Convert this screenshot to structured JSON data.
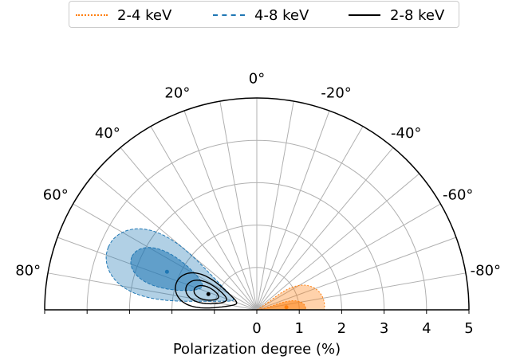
{
  "chart_data": {
    "type": "polar",
    "title": "",
    "xlabel": "Polarization degree (%)",
    "radial_range": [
      0,
      5
    ],
    "radial_ticks": [
      0,
      1,
      2,
      3,
      4,
      5
    ],
    "angle_range_deg": [
      -90,
      90
    ],
    "angle_ticks_deg": [
      0,
      20,
      40,
      60,
      80,
      -20,
      -40,
      -60,
      -80
    ],
    "angle_tick_labels": [
      "0°",
      "20°",
      "40°",
      "60°",
      "80°",
      "-20°",
      "-40°",
      "-60°",
      "-80°"
    ],
    "grid": true,
    "legend_placement": "top",
    "series": [
      {
        "name": "2-4 keV",
        "color": "#ff7f0e",
        "linestyle": "dotted",
        "best_fit": {
          "pd": 0.7,
          "angle_deg": -85
        },
        "contours": [
          {
            "level": "inner",
            "center_pd": 0.6,
            "center_angle_deg": -88,
            "semi_pd": 0.55,
            "semi_angle_deg": 14
          },
          {
            "level": "outer",
            "center_pd": 0.6,
            "center_angle_deg": -85,
            "semi_pd": 1.0,
            "semi_angle_deg": 30
          }
        ]
      },
      {
        "name": "4-8 keV",
        "color": "#1f77b4",
        "linestyle": "dashed",
        "best_fit": {
          "pd": 2.3,
          "angle_deg": 67
        },
        "contours": [
          {
            "level": "inner",
            "center_pd": 2.3,
            "center_angle_deg": 67,
            "semi_pd": 0.9,
            "semi_angle_deg": 10
          },
          {
            "level": "outer",
            "center_pd": 2.2,
            "center_angle_deg": 67,
            "semi_pd": 1.6,
            "semi_angle_deg": 17
          }
        ]
      },
      {
        "name": "2-8 keV",
        "color": "#000000",
        "linestyle": "solid",
        "best_fit": {
          "pd": 1.2,
          "angle_deg": 72
        },
        "contours": [
          {
            "level": "inner",
            "center_pd": 1.25,
            "center_angle_deg": 72,
            "semi_pd": 0.3,
            "semi_angle_deg": 7
          },
          {
            "level": "middle",
            "center_pd": 1.25,
            "center_angle_deg": 72,
            "semi_pd": 0.5,
            "semi_angle_deg": 11
          },
          {
            "level": "outer",
            "center_pd": 1.25,
            "center_angle_deg": 72,
            "semi_pd": 0.75,
            "semi_angle_deg": 16
          }
        ]
      }
    ]
  }
}
